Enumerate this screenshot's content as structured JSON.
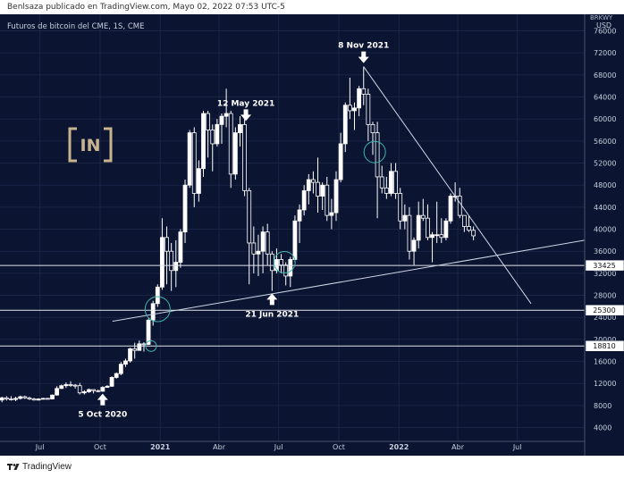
{
  "header": {
    "publish_line": "Benlsaza publicado en TradingView.com, Mayo 02, 2022 07:53 UTC-5"
  },
  "footer": {
    "brand": "TradingView",
    "brand_icon": "tradingview-logo-icon"
  },
  "colors": {
    "background": "#0b1431",
    "grid": "#1b2545",
    "candle_up": "#ffffff",
    "candle_down": "#ffffff",
    "lines": "#cfd6e6",
    "highlight_circle": "#3fb5b0",
    "logo_gold": "#c9b48e"
  },
  "logo": {
    "text": "[IN]"
  },
  "chart_data": {
    "type": "candlestick",
    "title": "Futuros de bitcoin del CME, 1S, CME",
    "currency_label": "USD",
    "currency_label_top": "BRKWY",
    "y_scale": "linear",
    "ylim": [
      1500,
      79000
    ],
    "y_ticks": [
      4000,
      8000,
      12000,
      16000,
      20000,
      24000,
      28000,
      32000,
      36000,
      40000,
      44000,
      48000,
      52000,
      56000,
      60000,
      64000,
      68000,
      72000,
      76000
    ],
    "x_ticks": [
      {
        "label": "Jul",
        "date": "2020-07-01"
      },
      {
        "label": "Oct",
        "date": "2020-10-01"
      },
      {
        "label": "2021",
        "date": "2021-01-01",
        "bold": true
      },
      {
        "label": "Abr",
        "date": "2021-04-01"
      },
      {
        "label": "Jul",
        "date": "2021-07-01"
      },
      {
        "label": "Oct",
        "date": "2021-10-01"
      },
      {
        "label": "2022",
        "date": "2022-01-01",
        "bold": true
      },
      {
        "label": "Abr",
        "date": "2022-04-01"
      },
      {
        "label": "Jul",
        "date": "2022-07-01"
      }
    ],
    "xlim": [
      "2020-05-01",
      "2022-10-12"
    ],
    "horizontal_levels": [
      {
        "value": 33425,
        "label": "33425"
      },
      {
        "value": 25300,
        "label": "25300"
      },
      {
        "value": 18810,
        "label": "18810"
      }
    ],
    "trendlines": [
      {
        "name": "rising support",
        "from": {
          "date": "2020-10-20",
          "value": 23300
        },
        "to": {
          "date": "2022-10-12",
          "value": 38000
        }
      },
      {
        "name": "falling resistance",
        "from": {
          "date": "2021-11-08",
          "value": 69500
        },
        "to": {
          "date": "2022-07-22",
          "value": 26500
        }
      }
    ],
    "circles": [
      {
        "date": "2020-12-18",
        "value": 18810,
        "size": "small"
      },
      {
        "date": "2020-12-28",
        "value": 25500,
        "size": "large"
      },
      {
        "date": "2021-07-10",
        "value": 34000,
        "size": "medium"
      },
      {
        "date": "2021-11-25",
        "value": 54000,
        "size": "medium"
      }
    ],
    "annotations": [
      {
        "text": "5 Oct 2020",
        "date": "2020-10-05",
        "value": 10800,
        "arrow": "up",
        "label_side": "below"
      },
      {
        "text": "12 May 2021",
        "date": "2021-05-12",
        "value": 59000,
        "arrow": "down",
        "label_side": "above"
      },
      {
        "text": "21 Jun 2021",
        "date": "2021-06-21",
        "value": 29000,
        "arrow": "up",
        "label_side": "below"
      },
      {
        "text": "8 Nov 2021",
        "date": "2021-11-08",
        "value": 69500,
        "arrow": "down",
        "label_side": "above"
      }
    ],
    "candles": [
      {
        "d": "2020-05-04",
        "o": 9000,
        "h": 9600,
        "l": 8600,
        "c": 9400
      },
      {
        "d": "2020-05-11",
        "o": 9400,
        "h": 9700,
        "l": 8900,
        "c": 9200
      },
      {
        "d": "2020-05-18",
        "o": 9200,
        "h": 9700,
        "l": 8900,
        "c": 9100
      },
      {
        "d": "2020-05-25",
        "o": 9100,
        "h": 9600,
        "l": 8800,
        "c": 9300
      },
      {
        "d": "2020-06-01",
        "o": 9300,
        "h": 9800,
        "l": 9100,
        "c": 9600
      },
      {
        "d": "2020-06-08",
        "o": 9600,
        "h": 9800,
        "l": 9200,
        "c": 9400
      },
      {
        "d": "2020-06-15",
        "o": 9400,
        "h": 9600,
        "l": 9000,
        "c": 9200
      },
      {
        "d": "2020-06-22",
        "o": 9200,
        "h": 9400,
        "l": 8900,
        "c": 9000
      },
      {
        "d": "2020-06-29",
        "o": 9000,
        "h": 9300,
        "l": 8900,
        "c": 9200
      },
      {
        "d": "2020-07-06",
        "o": 9200,
        "h": 9400,
        "l": 9100,
        "c": 9300
      },
      {
        "d": "2020-07-13",
        "o": 9300,
        "h": 9400,
        "l": 9100,
        "c": 9200
      },
      {
        "d": "2020-07-20",
        "o": 9200,
        "h": 10000,
        "l": 9100,
        "c": 9900
      },
      {
        "d": "2020-07-27",
        "o": 9900,
        "h": 11500,
        "l": 9800,
        "c": 11100
      },
      {
        "d": "2020-08-03",
        "o": 11100,
        "h": 11800,
        "l": 11000,
        "c": 11600
      },
      {
        "d": "2020-08-10",
        "o": 11600,
        "h": 12200,
        "l": 11200,
        "c": 11800
      },
      {
        "d": "2020-08-17",
        "o": 11800,
        "h": 12400,
        "l": 11400,
        "c": 11700
      },
      {
        "d": "2020-08-24",
        "o": 11700,
        "h": 11900,
        "l": 11100,
        "c": 11600
      },
      {
        "d": "2020-08-31",
        "o": 11600,
        "h": 12100,
        "l": 10000,
        "c": 10300
      },
      {
        "d": "2020-09-07",
        "o": 10300,
        "h": 10800,
        "l": 10000,
        "c": 10500
      },
      {
        "d": "2020-09-14",
        "o": 10500,
        "h": 11100,
        "l": 10300,
        "c": 10900
      },
      {
        "d": "2020-09-21",
        "o": 10900,
        "h": 10900,
        "l": 10200,
        "c": 10700
      },
      {
        "d": "2020-09-28",
        "o": 10700,
        "h": 10900,
        "l": 10400,
        "c": 10600
      },
      {
        "d": "2020-10-05",
        "o": 10600,
        "h": 11500,
        "l": 10500,
        "c": 11300
      },
      {
        "d": "2020-10-12",
        "o": 11300,
        "h": 11700,
        "l": 11200,
        "c": 11500
      },
      {
        "d": "2020-10-19",
        "o": 11500,
        "h": 13300,
        "l": 11400,
        "c": 13100
      },
      {
        "d": "2020-10-26",
        "o": 13100,
        "h": 14000,
        "l": 12900,
        "c": 13800
      },
      {
        "d": "2020-11-02",
        "o": 13800,
        "h": 15900,
        "l": 13500,
        "c": 15500
      },
      {
        "d": "2020-11-09",
        "o": 15500,
        "h": 16500,
        "l": 15000,
        "c": 16100
      },
      {
        "d": "2020-11-16",
        "o": 16100,
        "h": 18500,
        "l": 15800,
        "c": 18300
      },
      {
        "d": "2020-11-23",
        "o": 18300,
        "h": 19400,
        "l": 16500,
        "c": 18000
      },
      {
        "d": "2020-11-30",
        "o": 18000,
        "h": 19800,
        "l": 18000,
        "c": 19200
      },
      {
        "d": "2020-12-07",
        "o": 19200,
        "h": 19500,
        "l": 17800,
        "c": 19100
      },
      {
        "d": "2020-12-14",
        "o": 19100,
        "h": 23800,
        "l": 19000,
        "c": 23500
      },
      {
        "d": "2020-12-21",
        "o": 23500,
        "h": 27000,
        "l": 22500,
        "c": 26500
      },
      {
        "d": "2020-12-28",
        "o": 26500,
        "h": 30000,
        "l": 25900,
        "c": 29500
      },
      {
        "d": "2021-01-04",
        "o": 29500,
        "h": 42000,
        "l": 29000,
        "c": 38500
      },
      {
        "d": "2021-01-11",
        "o": 38500,
        "h": 40500,
        "l": 30000,
        "c": 36000
      },
      {
        "d": "2021-01-18",
        "o": 36000,
        "h": 37500,
        "l": 28800,
        "c": 32500
      },
      {
        "d": "2021-01-25",
        "o": 32500,
        "h": 38000,
        "l": 29500,
        "c": 34000
      },
      {
        "d": "2021-02-01",
        "o": 34000,
        "h": 40000,
        "l": 33000,
        "c": 39500
      },
      {
        "d": "2021-02-08",
        "o": 39500,
        "h": 49000,
        "l": 37500,
        "c": 48000
      },
      {
        "d": "2021-02-15",
        "o": 48000,
        "h": 58000,
        "l": 47500,
        "c": 57500
      },
      {
        "d": "2021-02-22",
        "o": 57500,
        "h": 58500,
        "l": 44000,
        "c": 46500
      },
      {
        "d": "2021-03-01",
        "o": 46500,
        "h": 52500,
        "l": 45000,
        "c": 51000
      },
      {
        "d": "2021-03-08",
        "o": 51000,
        "h": 61500,
        "l": 49500,
        "c": 61000
      },
      {
        "d": "2021-03-15",
        "o": 61000,
        "h": 61500,
        "l": 53000,
        "c": 58000
      },
      {
        "d": "2021-03-22",
        "o": 58000,
        "h": 59000,
        "l": 50500,
        "c": 55500
      },
      {
        "d": "2021-03-29",
        "o": 55500,
        "h": 60000,
        "l": 55000,
        "c": 59000
      },
      {
        "d": "2021-04-05",
        "o": 59000,
        "h": 61000,
        "l": 55500,
        "c": 60500
      },
      {
        "d": "2021-04-12",
        "o": 60500,
        "h": 65500,
        "l": 58500,
        "c": 61000
      },
      {
        "d": "2021-04-19",
        "o": 61000,
        "h": 61500,
        "l": 47500,
        "c": 50000
      },
      {
        "d": "2021-04-26",
        "o": 50000,
        "h": 58500,
        "l": 49000,
        "c": 57500
      },
      {
        "d": "2021-05-03",
        "o": 57500,
        "h": 60500,
        "l": 55000,
        "c": 59000
      },
      {
        "d": "2021-05-10",
        "o": 59000,
        "h": 60500,
        "l": 46000,
        "c": 47000
      },
      {
        "d": "2021-05-17",
        "o": 47000,
        "h": 47500,
        "l": 30000,
        "c": 37500
      },
      {
        "d": "2021-05-24",
        "o": 37500,
        "h": 40500,
        "l": 32000,
        "c": 35500
      },
      {
        "d": "2021-05-31",
        "o": 35500,
        "h": 39000,
        "l": 31500,
        "c": 36000
      },
      {
        "d": "2021-06-07",
        "o": 36000,
        "h": 40500,
        "l": 32000,
        "c": 39500
      },
      {
        "d": "2021-06-14",
        "o": 39500,
        "h": 41000,
        "l": 33500,
        "c": 35500
      },
      {
        "d": "2021-06-21",
        "o": 35500,
        "h": 36000,
        "l": 28800,
        "c": 32500
      },
      {
        "d": "2021-06-28",
        "o": 32500,
        "h": 36500,
        "l": 32000,
        "c": 34500
      },
      {
        "d": "2021-07-05",
        "o": 34500,
        "h": 35500,
        "l": 32000,
        "c": 33500
      },
      {
        "d": "2021-07-12",
        "o": 33500,
        "h": 34000,
        "l": 29800,
        "c": 31500
      },
      {
        "d": "2021-07-19",
        "o": 31500,
        "h": 35000,
        "l": 29500,
        "c": 34500
      },
      {
        "d": "2021-07-26",
        "o": 34500,
        "h": 42500,
        "l": 34000,
        "c": 41500
      },
      {
        "d": "2021-08-02",
        "o": 41500,
        "h": 44500,
        "l": 37500,
        "c": 43500
      },
      {
        "d": "2021-08-09",
        "o": 43500,
        "h": 48000,
        "l": 42500,
        "c": 47000
      },
      {
        "d": "2021-08-16",
        "o": 47000,
        "h": 50000,
        "l": 44500,
        "c": 49000
      },
      {
        "d": "2021-08-23",
        "o": 49000,
        "h": 50500,
        "l": 46500,
        "c": 48500
      },
      {
        "d": "2021-08-30",
        "o": 48500,
        "h": 53000,
        "l": 43000,
        "c": 46000
      },
      {
        "d": "2021-09-06",
        "o": 46000,
        "h": 48500,
        "l": 43500,
        "c": 48000
      },
      {
        "d": "2021-09-13",
        "o": 48000,
        "h": 49500,
        "l": 41500,
        "c": 42500
      },
      {
        "d": "2021-09-20",
        "o": 42500,
        "h": 45500,
        "l": 40000,
        "c": 43000
      },
      {
        "d": "2021-09-27",
        "o": 43000,
        "h": 50500,
        "l": 41500,
        "c": 49000
      },
      {
        "d": "2021-10-04",
        "o": 49000,
        "h": 57500,
        "l": 48500,
        "c": 55500
      },
      {
        "d": "2021-10-11",
        "o": 55500,
        "h": 63000,
        "l": 54000,
        "c": 62500
      },
      {
        "d": "2021-10-18",
        "o": 62500,
        "h": 67500,
        "l": 60000,
        "c": 61500
      },
      {
        "d": "2021-10-25",
        "o": 61500,
        "h": 63000,
        "l": 58000,
        "c": 62000
      },
      {
        "d": "2021-11-01",
        "o": 62000,
        "h": 66000,
        "l": 60500,
        "c": 65500
      },
      {
        "d": "2021-11-08",
        "o": 65500,
        "h": 69500,
        "l": 62500,
        "c": 64500
      },
      {
        "d": "2021-11-15",
        "o": 64500,
        "h": 65500,
        "l": 56000,
        "c": 59000
      },
      {
        "d": "2021-11-22",
        "o": 59000,
        "h": 59500,
        "l": 53500,
        "c": 57500
      },
      {
        "d": "2021-11-29",
        "o": 57500,
        "h": 59500,
        "l": 42000,
        "c": 49500
      },
      {
        "d": "2021-12-06",
        "o": 49500,
        "h": 51500,
        "l": 46500,
        "c": 47500
      },
      {
        "d": "2021-12-13",
        "o": 47500,
        "h": 49500,
        "l": 45500,
        "c": 46500
      },
      {
        "d": "2021-12-20",
        "o": 46500,
        "h": 52000,
        "l": 46000,
        "c": 50500
      },
      {
        "d": "2021-12-27",
        "o": 50500,
        "h": 52000,
        "l": 45500,
        "c": 46500
      },
      {
        "d": "2022-01-03",
        "o": 46500,
        "h": 47500,
        "l": 40000,
        "c": 41500
      },
      {
        "d": "2022-01-10",
        "o": 41500,
        "h": 44500,
        "l": 40000,
        "c": 42500
      },
      {
        "d": "2022-01-17",
        "o": 42500,
        "h": 44000,
        "l": 34500,
        "c": 36000
      },
      {
        "d": "2022-01-24",
        "o": 36000,
        "h": 38500,
        "l": 33500,
        "c": 38000
      },
      {
        "d": "2022-01-31",
        "o": 38000,
        "h": 45000,
        "l": 36500,
        "c": 42500
      },
      {
        "d": "2022-02-07",
        "o": 42500,
        "h": 45500,
        "l": 41500,
        "c": 42000
      },
      {
        "d": "2022-02-14",
        "o": 42000,
        "h": 44500,
        "l": 38000,
        "c": 38500
      },
      {
        "d": "2022-02-21",
        "o": 38500,
        "h": 39500,
        "l": 34000,
        "c": 39000
      },
      {
        "d": "2022-02-28",
        "o": 39000,
        "h": 45000,
        "l": 37500,
        "c": 39000
      },
      {
        "d": "2022-03-07",
        "o": 39000,
        "h": 42000,
        "l": 37500,
        "c": 38500
      },
      {
        "d": "2022-03-14",
        "o": 38500,
        "h": 42000,
        "l": 38000,
        "c": 41500
      },
      {
        "d": "2022-03-21",
        "o": 41500,
        "h": 46500,
        "l": 41000,
        "c": 46000
      },
      {
        "d": "2022-03-28",
        "o": 46000,
        "h": 48500,
        "l": 45000,
        "c": 46000
      },
      {
        "d": "2022-04-04",
        "o": 46000,
        "h": 47500,
        "l": 42000,
        "c": 42500
      },
      {
        "d": "2022-04-11",
        "o": 42500,
        "h": 42500,
        "l": 39500,
        "c": 40500
      },
      {
        "d": "2022-04-18",
        "o": 40500,
        "h": 42500,
        "l": 39500,
        "c": 39800
      },
      {
        "d": "2022-04-25",
        "o": 39800,
        "h": 40500,
        "l": 38000,
        "c": 38800
      }
    ]
  }
}
